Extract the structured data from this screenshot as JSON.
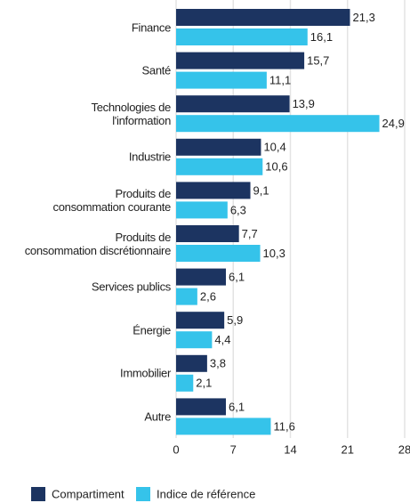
{
  "chart_data": {
    "type": "bar",
    "orientation": "horizontal",
    "categories": [
      "Finance",
      "Santé",
      "Technologies de\nl'information",
      "Industrie",
      "Produits de\nconsommation courante",
      "Produits de\nconsommation discrétionnaire",
      "Services publics",
      "Énergie",
      "Immobilier",
      "Autre"
    ],
    "series": [
      {
        "name": "Compartiment",
        "color": "#1c3461",
        "values": [
          21.3,
          15.7,
          13.9,
          10.4,
          9.1,
          7.7,
          6.1,
          5.9,
          3.8,
          6.1
        ],
        "value_labels": [
          "21,3",
          "15,7",
          "13,9",
          "10,4",
          "9,1",
          "7,7",
          "6,1",
          "5,9",
          "3,8",
          "6,1"
        ]
      },
      {
        "name": "Indice de référence",
        "color": "#35c3ea",
        "values": [
          16.1,
          11.1,
          24.9,
          10.6,
          6.3,
          10.3,
          2.6,
          4.4,
          2.1,
          11.6
        ],
        "value_labels": [
          "16,1",
          "11,1",
          "24,9",
          "10,6",
          "6,3",
          "10,3",
          "2,6",
          "4,4",
          "2,1",
          "11,6"
        ]
      }
    ],
    "xlim": [
      0,
      28
    ],
    "xticks": [
      0,
      7,
      14,
      21,
      28
    ],
    "grid": true
  }
}
